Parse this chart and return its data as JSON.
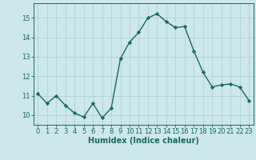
{
  "x": [
    0,
    1,
    2,
    3,
    4,
    5,
    6,
    7,
    8,
    9,
    10,
    11,
    12,
    13,
    14,
    15,
    16,
    17,
    18,
    19,
    20,
    21,
    22,
    23
  ],
  "y": [
    11.1,
    10.6,
    11.0,
    10.5,
    10.1,
    9.9,
    10.6,
    9.85,
    10.35,
    12.9,
    13.75,
    14.25,
    15.0,
    15.2,
    14.8,
    14.5,
    14.55,
    13.3,
    12.2,
    11.45,
    11.55,
    11.6,
    11.45,
    10.75
  ],
  "line_color": "#1a6b5a",
  "marker": "D",
  "marker_size": 2.2,
  "bg_color": "#cce8e8",
  "grid_color": "#aacfcf",
  "tick_color": "#1a6b5a",
  "label_color": "#1a6b5a",
  "xlabel": "Humidex (Indice chaleur)",
  "xlabel_fontsize": 7,
  "ylim": [
    9.5,
    15.75
  ],
  "xlim": [
    -0.5,
    23.5
  ],
  "yticks": [
    10,
    11,
    12,
    13,
    14,
    15
  ],
  "xticks": [
    0,
    1,
    2,
    3,
    4,
    5,
    6,
    7,
    8,
    9,
    10,
    11,
    12,
    13,
    14,
    15,
    16,
    17,
    18,
    19,
    20,
    21,
    22,
    23
  ],
  "tick_fontsize": 6,
  "line_width": 1.0
}
